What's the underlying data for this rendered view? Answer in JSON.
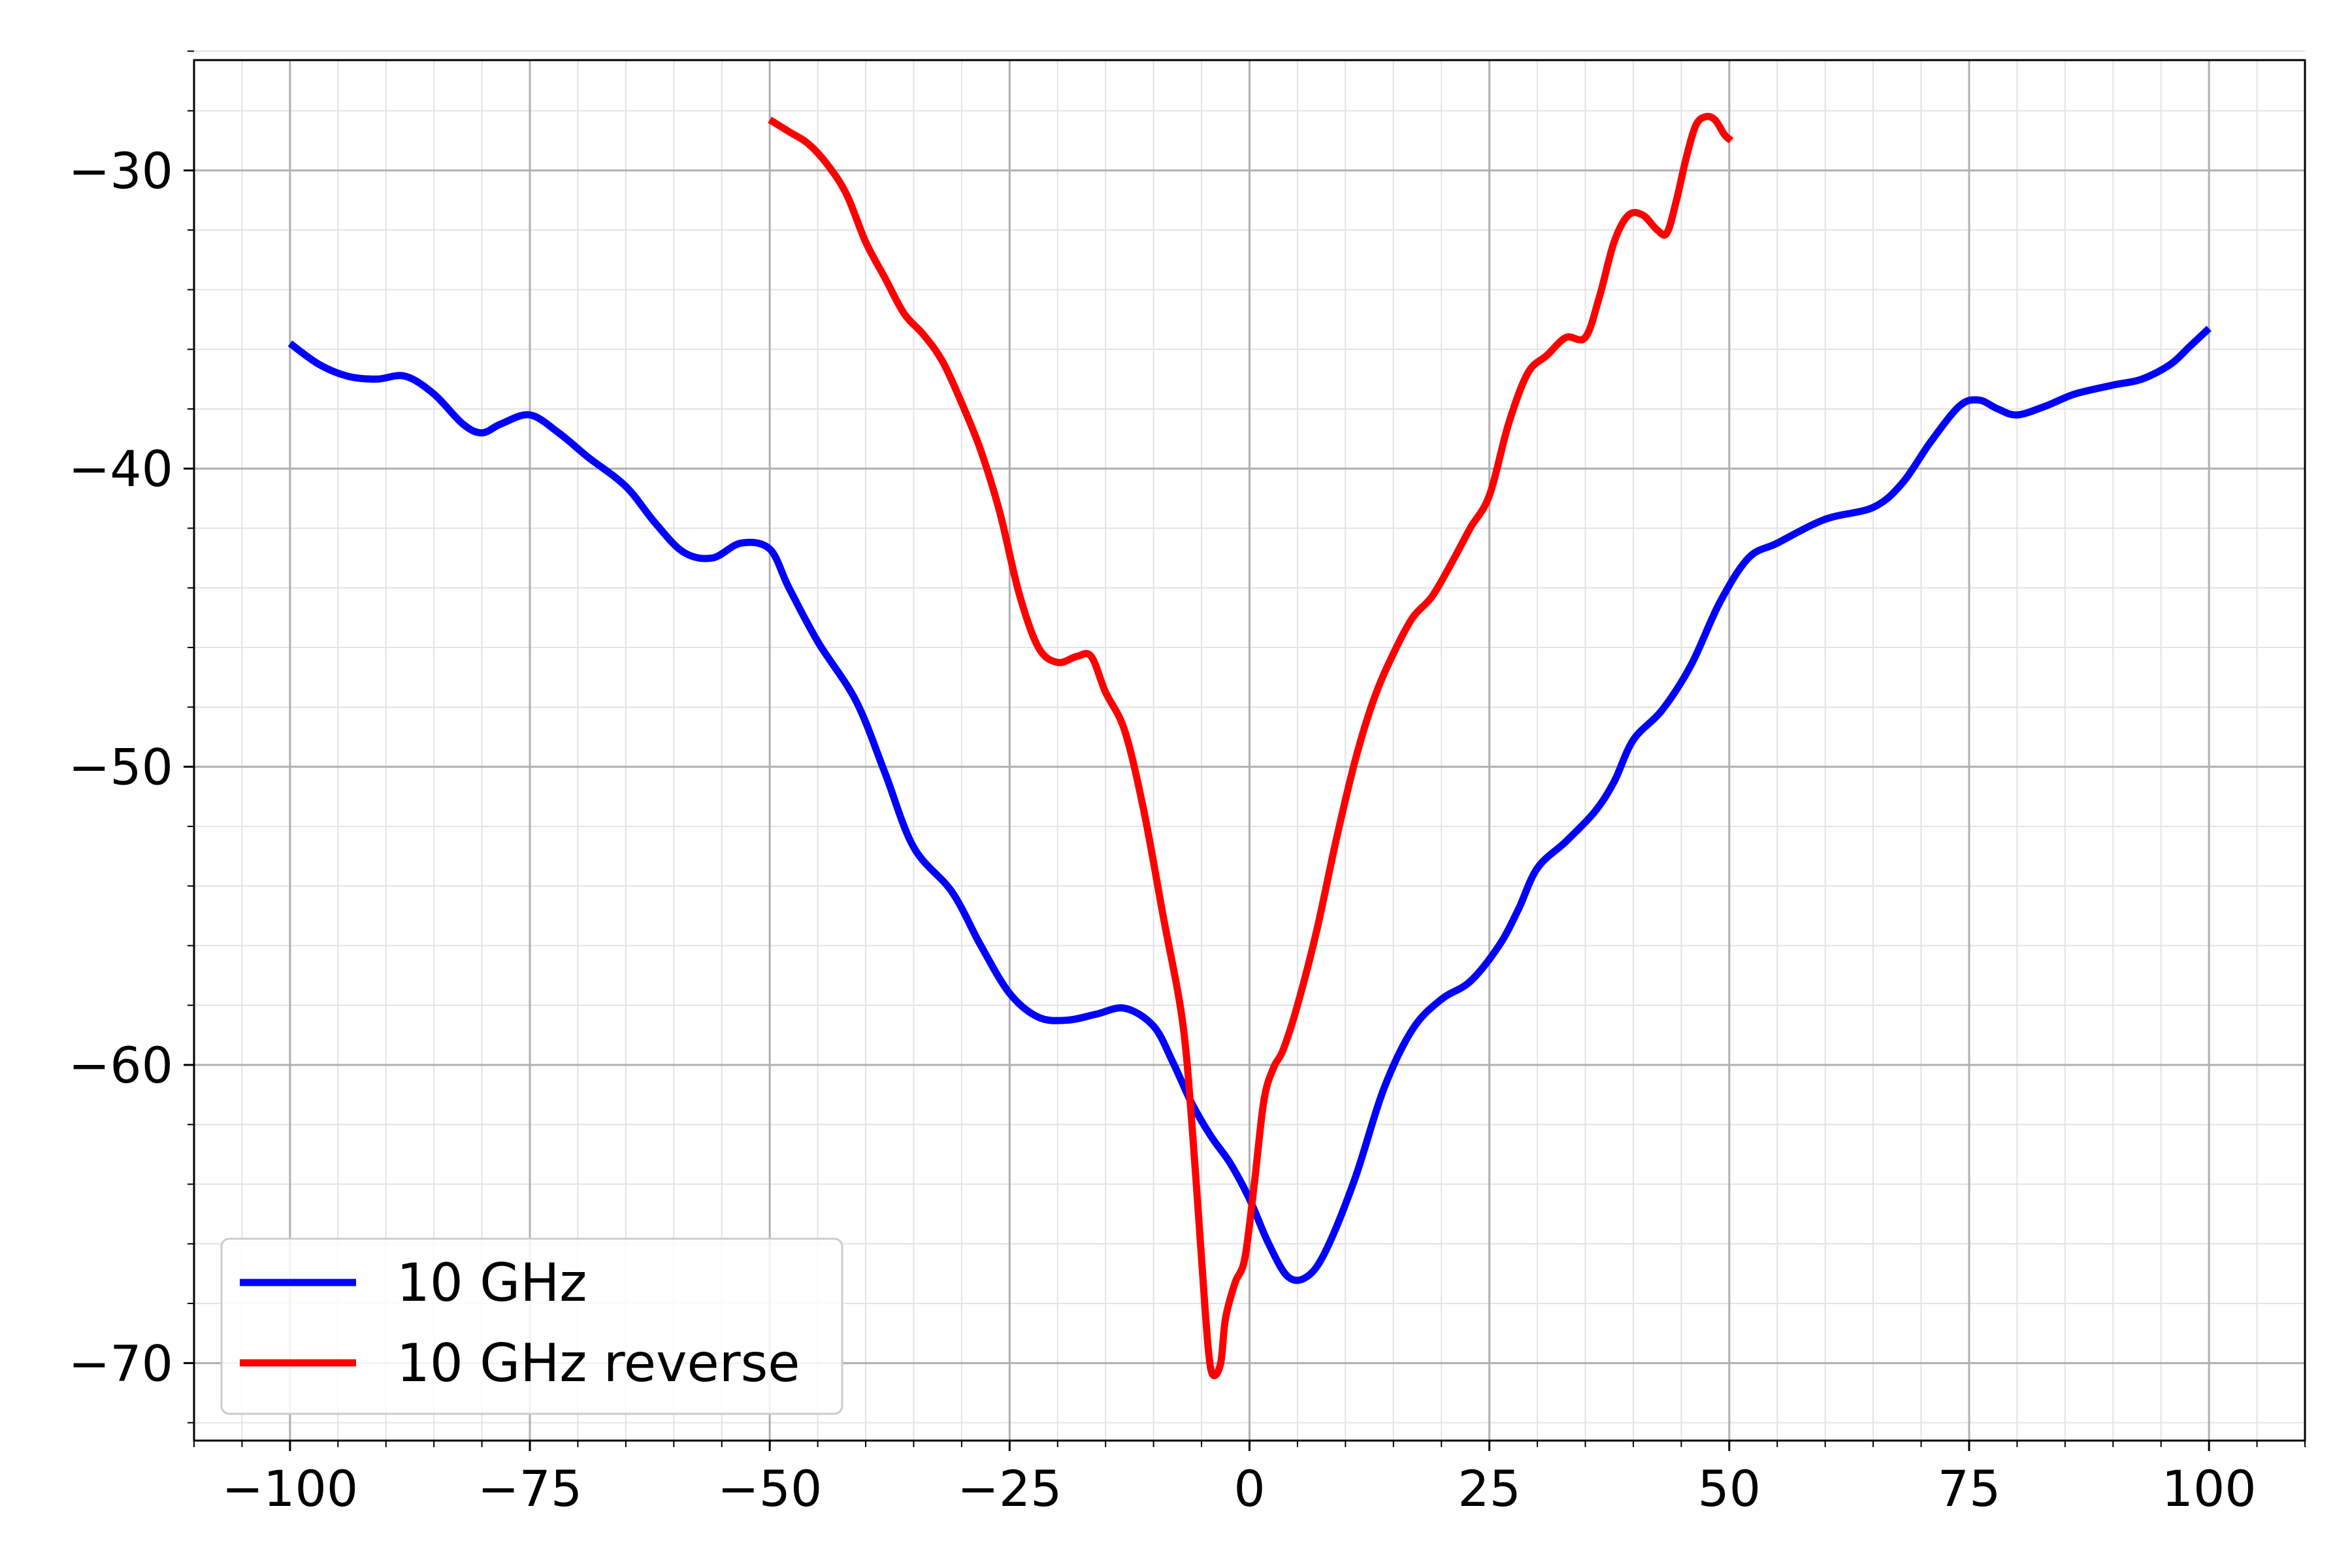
{
  "chart_data": {
    "type": "line",
    "title": "",
    "xlabel": "",
    "ylabel": "",
    "xlim": [
      -110,
      110
    ],
    "ylim": [
      -72.6,
      -26.3
    ],
    "grid": true,
    "minor_grid": true,
    "legend_position": "lower-left",
    "x_ticks": [
      -100,
      -75,
      -50,
      -25,
      0,
      25,
      50,
      75,
      100
    ],
    "x_tick_labels": [
      "−100",
      "−75",
      "−50",
      "−25",
      "0",
      "25",
      "50",
      "75",
      "100"
    ],
    "y_ticks": [
      -30,
      -40,
      -50,
      -60,
      -70
    ],
    "y_tick_labels": [
      "−30",
      "−40",
      "−50",
      "−60",
      "−70"
    ],
    "series": [
      {
        "name": "10 GHz",
        "color": "#0000ff",
        "points": [
          [
            -100,
            -35.8
          ],
          [
            -97,
            -36.5
          ],
          [
            -94,
            -36.9
          ],
          [
            -91,
            -37.0
          ],
          [
            -88,
            -36.9
          ],
          [
            -85,
            -37.5
          ],
          [
            -82,
            -38.5
          ],
          [
            -80,
            -38.8
          ],
          [
            -78,
            -38.5
          ],
          [
            -75,
            -38.2
          ],
          [
            -72,
            -38.8
          ],
          [
            -69,
            -39.6
          ],
          [
            -65,
            -40.6
          ],
          [
            -62,
            -41.8
          ],
          [
            -59,
            -42.8
          ],
          [
            -56,
            -43.0
          ],
          [
            -53,
            -42.5
          ],
          [
            -50,
            -42.7
          ],
          [
            -48,
            -44.0
          ],
          [
            -45,
            -45.8
          ],
          [
            -41,
            -47.8
          ],
          [
            -38,
            -50.2
          ],
          [
            -35,
            -52.7
          ],
          [
            -31,
            -54.2
          ],
          [
            -28,
            -56.0
          ],
          [
            -25,
            -57.6
          ],
          [
            -22,
            -58.4
          ],
          [
            -19,
            -58.5
          ],
          [
            -16,
            -58.3
          ],
          [
            -13,
            -58.1
          ],
          [
            -10,
            -58.7
          ],
          [
            -8,
            -59.9
          ],
          [
            -6,
            -61.3
          ],
          [
            -4,
            -62.4
          ],
          [
            -2,
            -63.3
          ],
          [
            0,
            -64.5
          ],
          [
            2,
            -66.0
          ],
          [
            4,
            -67.1
          ],
          [
            6,
            -67.1
          ],
          [
            8,
            -66.2
          ],
          [
            11,
            -63.8
          ],
          [
            14,
            -60.8
          ],
          [
            17,
            -58.8
          ],
          [
            20,
            -57.8
          ],
          [
            23,
            -57.2
          ],
          [
            26,
            -56.0
          ],
          [
            28,
            -54.8
          ],
          [
            30,
            -53.4
          ],
          [
            33,
            -52.5
          ],
          [
            36,
            -51.5
          ],
          [
            38,
            -50.5
          ],
          [
            40,
            -49.1
          ],
          [
            43,
            -48.1
          ],
          [
            46,
            -46.6
          ],
          [
            49,
            -44.5
          ],
          [
            52,
            -43.0
          ],
          [
            55,
            -42.5
          ],
          [
            60,
            -41.7
          ],
          [
            65,
            -41.3
          ],
          [
            68,
            -40.5
          ],
          [
            71,
            -39.1
          ],
          [
            74,
            -37.9
          ],
          [
            76,
            -37.7
          ],
          [
            78,
            -38.0
          ],
          [
            80,
            -38.2
          ],
          [
            83,
            -37.9
          ],
          [
            86,
            -37.5
          ],
          [
            90,
            -37.2
          ],
          [
            93,
            -37.0
          ],
          [
            96,
            -36.5
          ],
          [
            98,
            -35.9
          ],
          [
            100,
            -35.3
          ]
        ]
      },
      {
        "name": "10 GHz reverse",
        "color": "#ff0000",
        "points": [
          [
            -50,
            -28.3
          ],
          [
            -48,
            -28.7
          ],
          [
            -46,
            -29.1
          ],
          [
            -44,
            -29.8
          ],
          [
            -42,
            -30.8
          ],
          [
            -40,
            -32.4
          ],
          [
            -38,
            -33.6
          ],
          [
            -36,
            -34.8
          ],
          [
            -34,
            -35.5
          ],
          [
            -32,
            -36.4
          ],
          [
            -30,
            -37.8
          ],
          [
            -28,
            -39.4
          ],
          [
            -26,
            -41.5
          ],
          [
            -24,
            -44.2
          ],
          [
            -22,
            -46.0
          ],
          [
            -20,
            -46.5
          ],
          [
            -18,
            -46.3
          ],
          [
            -16.5,
            -46.3
          ],
          [
            -15,
            -47.5
          ],
          [
            -13,
            -48.8
          ],
          [
            -11,
            -51.5
          ],
          [
            -9,
            -55.0
          ],
          [
            -7,
            -58.5
          ],
          [
            -6,
            -62.0
          ],
          [
            -5,
            -66.5
          ],
          [
            -4.3,
            -69.5
          ],
          [
            -3.8,
            -70.4
          ],
          [
            -3.0,
            -70.0
          ],
          [
            -2.5,
            -68.5
          ],
          [
            -1.5,
            -67.3
          ],
          [
            -0.5,
            -66.5
          ],
          [
            0.5,
            -64.0
          ],
          [
            1.5,
            -61.2
          ],
          [
            2.5,
            -60.1
          ],
          [
            3.5,
            -59.5
          ],
          [
            5,
            -58.0
          ],
          [
            7,
            -55.5
          ],
          [
            9,
            -52.5
          ],
          [
            11,
            -49.8
          ],
          [
            13,
            -47.7
          ],
          [
            15,
            -46.2
          ],
          [
            17,
            -45.0
          ],
          [
            19,
            -44.3
          ],
          [
            21,
            -43.2
          ],
          [
            23,
            -42.0
          ],
          [
            25,
            -40.9
          ],
          [
            27,
            -38.5
          ],
          [
            29,
            -36.8
          ],
          [
            31,
            -36.2
          ],
          [
            33,
            -35.6
          ],
          [
            35,
            -35.6
          ],
          [
            36.5,
            -34.2
          ],
          [
            38,
            -32.4
          ],
          [
            39.5,
            -31.5
          ],
          [
            41,
            -31.5
          ],
          [
            42.5,
            -32.0
          ],
          [
            43.5,
            -32.1
          ],
          [
            44.5,
            -31.0
          ],
          [
            45.5,
            -29.6
          ],
          [
            46.5,
            -28.5
          ],
          [
            47.5,
            -28.2
          ],
          [
            48.5,
            -28.3
          ],
          [
            49.5,
            -28.8
          ],
          [
            50.2,
            -29.0
          ]
        ]
      }
    ]
  }
}
